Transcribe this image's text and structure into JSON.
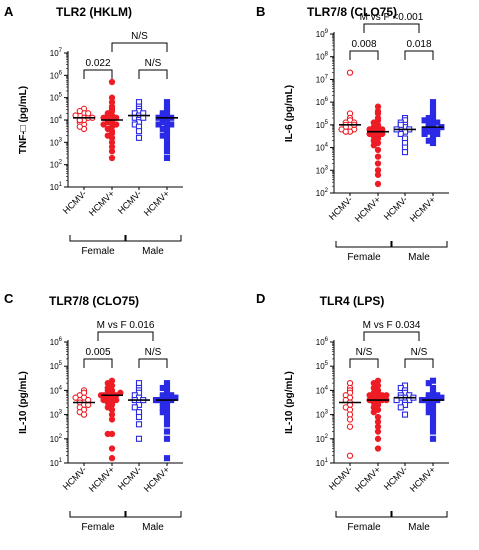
{
  "colors": {
    "female": "#ee1c25",
    "male": "#2a2ae6",
    "axis": "#000000"
  },
  "chart_data": [
    {
      "type": "scatter",
      "panel_label": "A",
      "title": "TLR2 (HKLM)",
      "ylabel": "TNF-□ (pg/mL)",
      "y_scale": "log",
      "ylim_exp": [
        1,
        7
      ],
      "categories": [
        "HCMV-",
        "HCMV+",
        "HCMV-",
        "HCMV+"
      ],
      "groups": [
        "Female",
        "Male"
      ],
      "brackets": [
        {
          "label": "N/S",
          "from": 1,
          "to": 3
        },
        {
          "label": "0.022",
          "from": 0,
          "to": 1
        },
        {
          "label": "N/S",
          "from": 2,
          "to": 3
        }
      ],
      "series": [
        {
          "sex": "female",
          "hcmv": "neg",
          "medianExp": 4.1,
          "valuesExp": [
            4.5,
            4.3,
            4.1,
            3.8,
            4.2,
            4.0,
            3.6,
            4.4,
            4.1,
            3.9,
            4.2,
            4.0,
            3.7,
            4.3,
            4.1
          ]
        },
        {
          "sex": "female",
          "hcmv": "pos",
          "medianExp": 4.0,
          "valuesExp": [
            5.7,
            5.0,
            4.8,
            4.6,
            4.5,
            4.4,
            4.3,
            4.2,
            4.2,
            4.1,
            4.1,
            4.0,
            4.0,
            3.9,
            3.9,
            3.8,
            3.8,
            3.7,
            3.6,
            3.5,
            3.4,
            3.3,
            3.2,
            3.0,
            2.8,
            2.6,
            2.3
          ]
        },
        {
          "sex": "male",
          "hcmv": "neg",
          "medianExp": 4.2,
          "valuesExp": [
            4.8,
            4.6,
            4.5,
            4.4,
            4.3,
            4.2,
            4.1,
            4.0,
            3.9,
            3.8,
            3.7,
            3.5,
            3.2,
            4.3,
            4.1
          ]
        },
        {
          "sex": "male",
          "hcmv": "pos",
          "medianExp": 4.1,
          "valuesExp": [
            4.8,
            4.6,
            4.5,
            4.4,
            4.3,
            4.2,
            4.2,
            4.1,
            4.1,
            4.0,
            4.0,
            3.9,
            3.9,
            3.8,
            3.8,
            3.7,
            3.6,
            3.5,
            3.4,
            3.3,
            3.2,
            3.0,
            2.8,
            2.6,
            2.3
          ]
        }
      ]
    },
    {
      "type": "scatter",
      "panel_label": "B",
      "title": "TLR7/8 (CLO75)",
      "ylabel": "IL-6 (pg/mL)",
      "y_scale": "log",
      "ylim_exp": [
        2,
        9
      ],
      "categories": [
        "HCMV-",
        "HCMV+",
        "HCMV-",
        "HCMV+"
      ],
      "groups": [
        "Female",
        "Male"
      ],
      "brackets": [
        {
          "label": "M vs F <0.001",
          "from": 0.5,
          "to": 2.5
        },
        {
          "label": "0.008",
          "from": 0,
          "to": 1
        },
        {
          "label": "0.018",
          "from": 2,
          "to": 3
        }
      ],
      "series": [
        {
          "sex": "female",
          "hcmv": "neg",
          "medianExp": 5.0,
          "valuesExp": [
            7.3,
            5.5,
            5.3,
            5.2,
            5.1,
            5.0,
            5.0,
            4.9,
            4.9,
            4.8,
            4.8,
            4.7,
            4.7,
            5.1,
            5.0
          ]
        },
        {
          "sex": "female",
          "hcmv": "pos",
          "medianExp": 4.7,
          "valuesExp": [
            5.8,
            5.6,
            5.5,
            5.3,
            5.2,
            5.1,
            5.0,
            4.9,
            4.9,
            4.8,
            4.8,
            4.7,
            4.7,
            4.6,
            4.6,
            4.5,
            4.5,
            4.4,
            4.3,
            4.2,
            4.1,
            3.9,
            3.6,
            3.3,
            3.0,
            2.8,
            2.4
          ]
        },
        {
          "sex": "male",
          "hcmv": "neg",
          "medianExp": 4.8,
          "valuesExp": [
            5.3,
            5.2,
            5.1,
            5.0,
            4.9,
            4.9,
            4.8,
            4.7,
            4.6,
            4.4,
            4.2,
            4.0,
            3.8,
            5.0,
            4.8
          ]
        },
        {
          "sex": "male",
          "hcmv": "pos",
          "medianExp": 4.9,
          "valuesExp": [
            6.0,
            5.8,
            5.6,
            5.5,
            5.4,
            5.3,
            5.2,
            5.1,
            5.0,
            5.0,
            4.9,
            4.9,
            4.8,
            4.8,
            4.7,
            4.7,
            4.6,
            4.5,
            4.4,
            4.3,
            4.2,
            5.1,
            4.9,
            5.2,
            4.6
          ]
        }
      ]
    },
    {
      "type": "scatter",
      "panel_label": "C",
      "title": "TLR7/8 (CLO75)",
      "ylabel": "IL-10 (pg/mL)",
      "y_scale": "log",
      "ylim_exp": [
        1,
        6
      ],
      "categories": [
        "HCMV-",
        "HCMV+",
        "HCMV-",
        "HCMV+"
      ],
      "groups": [
        "Female",
        "Male"
      ],
      "brackets": [
        {
          "label": "M vs F 0.016",
          "from": 0.5,
          "to": 2.5
        },
        {
          "label": "0.005",
          "from": 0,
          "to": 1
        },
        {
          "label": "N/S",
          "from": 2,
          "to": 3
        }
      ],
      "series": [
        {
          "sex": "female",
          "hcmv": "neg",
          "medianExp": 3.5,
          "valuesExp": [
            4.0,
            3.9,
            3.8,
            3.7,
            3.6,
            3.5,
            3.5,
            3.4,
            3.3,
            3.2,
            3.1,
            3.6,
            3.4,
            3.0,
            3.7
          ]
        },
        {
          "sex": "female",
          "hcmv": "pos",
          "medianExp": 3.8,
          "valuesExp": [
            4.4,
            4.3,
            4.2,
            4.1,
            4.0,
            4.0,
            3.9,
            3.9,
            3.8,
            3.8,
            3.7,
            3.7,
            3.6,
            3.6,
            3.5,
            3.5,
            3.4,
            3.3,
            3.2,
            3.0,
            2.8,
            2.2,
            2.2,
            1.6,
            1.2,
            3.9,
            3.8
          ]
        },
        {
          "sex": "male",
          "hcmv": "neg",
          "medianExp": 3.6,
          "valuesExp": [
            4.3,
            4.1,
            4.0,
            3.9,
            3.8,
            3.7,
            3.6,
            3.5,
            3.4,
            3.3,
            3.1,
            2.9,
            2.6,
            2.0,
            3.6
          ]
        },
        {
          "sex": "male",
          "hcmv": "pos",
          "medianExp": 3.6,
          "valuesExp": [
            4.3,
            4.2,
            4.1,
            4.0,
            3.9,
            3.8,
            3.8,
            3.7,
            3.7,
            3.6,
            3.6,
            3.5,
            3.5,
            3.4,
            3.3,
            3.2,
            3.1,
            3.0,
            2.8,
            2.6,
            2.3,
            2.0,
            1.2,
            3.7,
            3.6
          ]
        }
      ]
    },
    {
      "type": "scatter",
      "panel_label": "D",
      "title": "TLR4 (LPS)",
      "ylabel": "IL-10 (pg/mL)",
      "y_scale": "log",
      "ylim_exp": [
        1,
        6
      ],
      "categories": [
        "HCMV-",
        "HCMV+",
        "HCMV-",
        "HCMV+"
      ],
      "groups": [
        "Female",
        "Male"
      ],
      "brackets": [
        {
          "label": "M vs F 0.034",
          "from": 0.5,
          "to": 2.5
        },
        {
          "label": "N/S",
          "from": 0,
          "to": 1
        },
        {
          "label": "N/S",
          "from": 2,
          "to": 3
        }
      ],
      "series": [
        {
          "sex": "female",
          "hcmv": "neg",
          "medianExp": 3.5,
          "valuesExp": [
            4.3,
            4.1,
            4.0,
            3.9,
            3.8,
            3.7,
            3.6,
            3.5,
            3.4,
            3.3,
            3.2,
            3.0,
            2.8,
            2.5,
            1.3
          ]
        },
        {
          "sex": "female",
          "hcmv": "pos",
          "medianExp": 3.6,
          "valuesExp": [
            4.4,
            4.3,
            4.2,
            4.1,
            4.0,
            3.9,
            3.9,
            3.8,
            3.8,
            3.7,
            3.7,
            3.6,
            3.6,
            3.5,
            3.5,
            3.4,
            3.3,
            3.2,
            3.1,
            2.9,
            2.7,
            2.5,
            2.3,
            2.0,
            1.6,
            3.8,
            3.6
          ]
        },
        {
          "sex": "male",
          "hcmv": "neg",
          "medianExp": 3.7,
          "valuesExp": [
            4.2,
            4.1,
            4.0,
            3.9,
            3.8,
            3.8,
            3.7,
            3.7,
            3.6,
            3.6,
            3.5,
            3.4,
            3.3,
            3.0,
            3.7
          ]
        },
        {
          "sex": "male",
          "hcmv": "pos",
          "medianExp": 3.6,
          "valuesExp": [
            4.4,
            4.3,
            4.1,
            4.0,
            3.9,
            3.8,
            3.8,
            3.7,
            3.7,
            3.6,
            3.6,
            3.5,
            3.5,
            3.4,
            3.3,
            3.2,
            3.1,
            3.0,
            2.9,
            2.7,
            2.5,
            2.3,
            2.0,
            3.7,
            3.6
          ]
        }
      ]
    }
  ]
}
